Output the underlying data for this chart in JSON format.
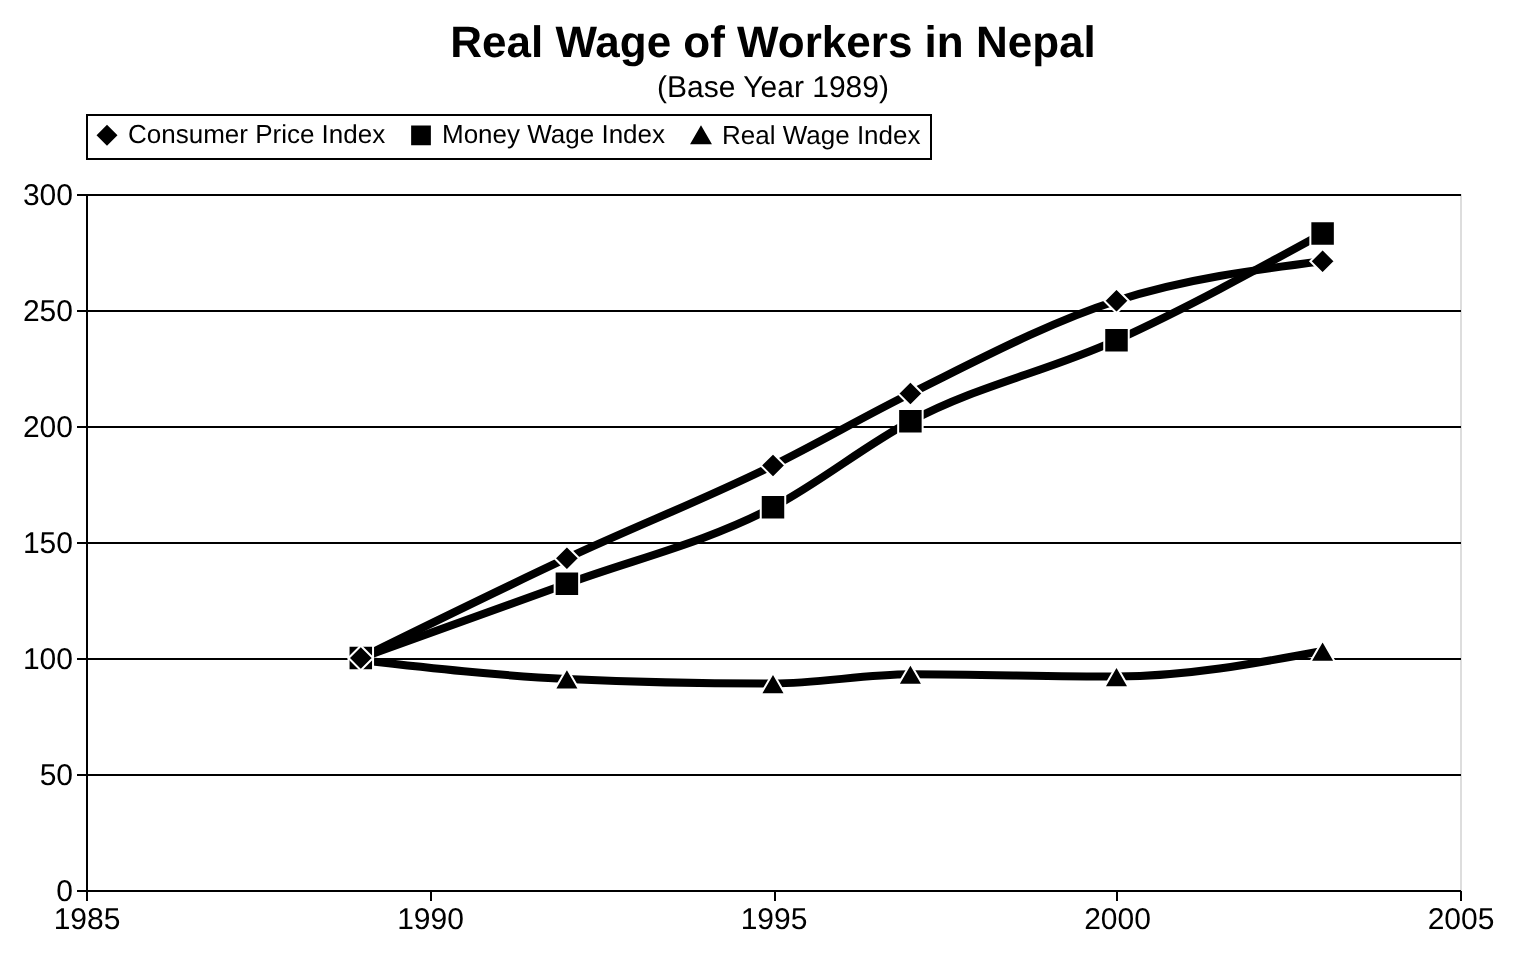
{
  "chart_data": {
    "type": "line",
    "title": "Real Wage of Workers in Nepal",
    "subtitle": "(Base Year 1989)",
    "x": [
      1989,
      1992,
      1995,
      1997,
      2000,
      2003
    ],
    "series": [
      {
        "name": "Consumer Price Index",
        "color": "#000000",
        "marker": "diamond",
        "values": [
          100,
          143,
          183,
          214,
          254,
          271
        ]
      },
      {
        "name": "Money Wage Index",
        "color": "#000000",
        "marker": "square",
        "values": [
          100,
          132,
          165,
          202,
          237,
          283
        ]
      },
      {
        "name": "Real Wage Index",
        "color": "#000000",
        "marker": "triangle",
        "values": [
          99,
          91,
          89,
          93,
          92,
          103
        ]
      }
    ],
    "xlim": [
      1985,
      2005
    ],
    "xticks": [
      1985,
      1990,
      1995,
      2000,
      2005
    ],
    "ylim": [
      0,
      300
    ],
    "yticks": [
      0,
      50,
      100,
      150,
      200,
      250,
      300
    ],
    "grid": "y",
    "legend": "top",
    "line_style": "solid"
  }
}
